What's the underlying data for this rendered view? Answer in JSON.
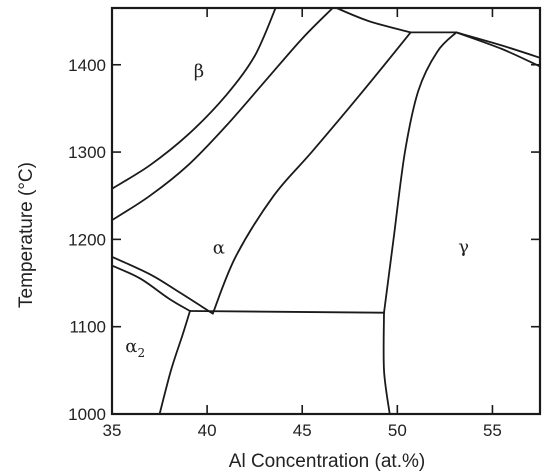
{
  "chart_data": {
    "type": "phase-diagram",
    "xlabel": "Al Concentration (at.%)",
    "ylabel": "Temperature (°C)",
    "xlim": [
      35,
      57.5
    ],
    "ylim": [
      1000,
      1465
    ],
    "x_ticks": [
      "35",
      "40",
      "45",
      "50",
      "55"
    ],
    "y_ticks": [
      "1000",
      "1100",
      "1200",
      "1300",
      "1400"
    ],
    "x_tick_values": [
      35,
      40,
      45,
      50,
      55
    ],
    "y_tick_values": [
      1000,
      1100,
      1200,
      1300,
      1400
    ],
    "grid": false,
    "phases": [
      {
        "label": "β",
        "x": 39.3,
        "y": 1386
      },
      {
        "label": "α",
        "x": 40.3,
        "y": 1184
      },
      {
        "label": "γ",
        "x": 53.2,
        "y": 1185
      },
      {
        "label": "α",
        "sub": "2",
        "x": 35.7,
        "y": 1071
      }
    ],
    "boundaries": [
      {
        "name": "beta-upper",
        "points": [
          [
            35,
            1258
          ],
          [
            37,
            1285
          ],
          [
            39,
            1320
          ],
          [
            41,
            1365
          ],
          [
            42.5,
            1410
          ],
          [
            43.6,
            1465
          ]
        ]
      },
      {
        "name": "beta-lower",
        "points": [
          [
            35,
            1222
          ],
          [
            37,
            1250
          ],
          [
            39,
            1285
          ],
          [
            41,
            1330
          ],
          [
            43,
            1380
          ],
          [
            45,
            1430
          ],
          [
            46.6,
            1465
          ]
        ]
      },
      {
        "name": "alpha-a2-upper",
        "points": [
          [
            35,
            1180
          ],
          [
            37,
            1160
          ],
          [
            38.5,
            1140
          ],
          [
            40.3,
            1115
          ]
        ]
      },
      {
        "name": "alpha-a2-lower",
        "points": [
          [
            35,
            1170
          ],
          [
            36.5,
            1155
          ],
          [
            38,
            1132
          ],
          [
            39.1,
            1118
          ]
        ]
      },
      {
        "name": "alpha2-boundary",
        "points": [
          [
            39.1,
            1118
          ],
          [
            38.7,
            1090
          ],
          [
            38.1,
            1050
          ],
          [
            37.5,
            1000
          ]
        ]
      },
      {
        "name": "alpha-lower",
        "points": [
          [
            40.3,
            1115
          ],
          [
            41.5,
            1180
          ],
          [
            43.5,
            1250
          ],
          [
            45.5,
            1300
          ],
          [
            48.2,
            1370
          ],
          [
            50.7,
            1437
          ]
        ]
      },
      {
        "name": "eutectoid",
        "points": [
          [
            39.1,
            1118
          ],
          [
            49.3,
            1116
          ]
        ]
      },
      {
        "name": "gamma-upper",
        "points": [
          [
            49.3,
            1116
          ],
          [
            49.8,
            1200
          ],
          [
            50.4,
            1300
          ],
          [
            51.1,
            1370
          ],
          [
            52.1,
            1415
          ],
          [
            53.1,
            1437
          ]
        ]
      },
      {
        "name": "gamma-lower",
        "points": [
          [
            49.3,
            1116
          ],
          [
            49.3,
            1050
          ],
          [
            49.6,
            1000
          ]
        ]
      },
      {
        "name": "peritectic",
        "points": [
          [
            50.7,
            1437
          ],
          [
            53.1,
            1437
          ]
        ]
      },
      {
        "name": "top-left",
        "points": [
          [
            46.8,
            1465
          ],
          [
            48.5,
            1450
          ],
          [
            50.7,
            1437
          ]
        ]
      },
      {
        "name": "top-right-a",
        "points": [
          [
            53.1,
            1437
          ],
          [
            55.5,
            1422
          ],
          [
            57.5,
            1408
          ]
        ]
      },
      {
        "name": "top-right-b",
        "points": [
          [
            53.1,
            1437
          ],
          [
            55.5,
            1418
          ],
          [
            57.5,
            1398
          ]
        ]
      }
    ]
  }
}
